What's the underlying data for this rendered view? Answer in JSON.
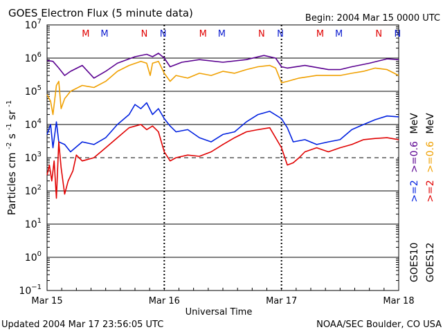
{
  "chart_data": {
    "type": "line",
    "title": "GOES Electron Flux (5 minute data)",
    "begin": "Begin:  2004 Mar 15  0000 UTC",
    "xlabel": "Universal Time",
    "ylabel": "Particles cm",
    "ylabel_units": [
      "-2",
      "s",
      "-1",
      "sr",
      "-1"
    ],
    "x_ticks": [
      "Mar 15",
      "Mar 16",
      "Mar 17",
      "Mar 18"
    ],
    "x_range_days": [
      0,
      3
    ],
    "y_scale": "log",
    "y_exponents": [
      7,
      6,
      5,
      4,
      3,
      2,
      1,
      0,
      -1
    ],
    "ylim": [
      0.1,
      10000000
    ],
    "dashed_level": 1000,
    "mn_markers": [
      {
        "label": "M",
        "day": 0.33,
        "color": "#e00000"
      },
      {
        "label": "M",
        "day": 0.49,
        "color": "#1020d0"
      },
      {
        "label": "N",
        "day": 0.83,
        "color": "#e00000"
      },
      {
        "label": "N",
        "day": 0.99,
        "color": "#1020d0"
      },
      {
        "label": "M",
        "day": 1.33,
        "color": "#e00000"
      },
      {
        "label": "M",
        "day": 1.49,
        "color": "#1020d0"
      },
      {
        "label": "N",
        "day": 1.83,
        "color": "#e00000"
      },
      {
        "label": "N",
        "day": 1.99,
        "color": "#1020d0"
      },
      {
        "label": "M",
        "day": 2.33,
        "color": "#e00000"
      },
      {
        "label": "M",
        "day": 2.49,
        "color": "#1020d0"
      },
      {
        "label": "N",
        "day": 2.83,
        "color": "#e00000"
      },
      {
        "label": "N",
        "day": 2.99,
        "color": "#1020d0"
      }
    ],
    "right_labels": {
      "goes10": "GOES10",
      "goes12": "GOES12",
      "g10_low": ">=2",
      "g10_high": ">=0.6",
      "g12_low": ">=2",
      "g12_high": ">=0.6",
      "unit": "MeV"
    },
    "series": [
      {
        "name": ">=0.6 MeV GOES10",
        "color": "#5a0090",
        "points": [
          [
            0.0,
            850000
          ],
          [
            0.05,
            800000
          ],
          [
            0.1,
            500000
          ],
          [
            0.15,
            300000
          ],
          [
            0.2,
            400000
          ],
          [
            0.3,
            600000
          ],
          [
            0.4,
            250000
          ],
          [
            0.5,
            400000
          ],
          [
            0.6,
            700000
          ],
          [
            0.75,
            1100000
          ],
          [
            0.85,
            1300000
          ],
          [
            0.9,
            1100000
          ],
          [
            0.95,
            1400000
          ],
          [
            1.0,
            1000000
          ],
          [
            1.05,
            550000
          ],
          [
            1.15,
            750000
          ],
          [
            1.3,
            900000
          ],
          [
            1.5,
            750000
          ],
          [
            1.7,
            900000
          ],
          [
            1.85,
            1200000
          ],
          [
            1.95,
            1000000
          ],
          [
            2.0,
            550000
          ],
          [
            2.05,
            500000
          ],
          [
            2.2,
            600000
          ],
          [
            2.4,
            450000
          ],
          [
            2.5,
            450000
          ],
          [
            2.6,
            550000
          ],
          [
            2.75,
            700000
          ],
          [
            2.9,
            950000
          ],
          [
            3.0,
            900000
          ]
        ]
      },
      {
        "name": ">=0.6 MeV GOES12",
        "color": "#f0a000",
        "points": [
          [
            0.0,
            80000
          ],
          [
            0.03,
            50000
          ],
          [
            0.05,
            20000
          ],
          [
            0.08,
            150000
          ],
          [
            0.1,
            200000
          ],
          [
            0.12,
            30000
          ],
          [
            0.15,
            60000
          ],
          [
            0.2,
            100000
          ],
          [
            0.3,
            150000
          ],
          [
            0.4,
            130000
          ],
          [
            0.5,
            200000
          ],
          [
            0.6,
            400000
          ],
          [
            0.7,
            600000
          ],
          [
            0.8,
            800000
          ],
          [
            0.85,
            700000
          ],
          [
            0.88,
            300000
          ],
          [
            0.9,
            700000
          ],
          [
            0.95,
            800000
          ],
          [
            1.0,
            350000
          ],
          [
            1.05,
            200000
          ],
          [
            1.1,
            300000
          ],
          [
            1.2,
            250000
          ],
          [
            1.3,
            350000
          ],
          [
            1.4,
            300000
          ],
          [
            1.5,
            400000
          ],
          [
            1.6,
            350000
          ],
          [
            1.7,
            450000
          ],
          [
            1.8,
            550000
          ],
          [
            1.9,
            600000
          ],
          [
            1.95,
            500000
          ],
          [
            2.0,
            180000
          ],
          [
            2.05,
            200000
          ],
          [
            2.15,
            250000
          ],
          [
            2.3,
            300000
          ],
          [
            2.5,
            300000
          ],
          [
            2.6,
            350000
          ],
          [
            2.7,
            400000
          ],
          [
            2.8,
            500000
          ],
          [
            2.9,
            450000
          ],
          [
            3.0,
            300000
          ]
        ]
      },
      {
        "name": ">=2 MeV GOES10",
        "color": "#0020e0",
        "points": [
          [
            0.0,
            5000
          ],
          [
            0.03,
            10000
          ],
          [
            0.05,
            2000
          ],
          [
            0.08,
            12000
          ],
          [
            0.1,
            3000
          ],
          [
            0.15,
            2500
          ],
          [
            0.2,
            1500
          ],
          [
            0.3,
            3000
          ],
          [
            0.4,
            2500
          ],
          [
            0.5,
            4000
          ],
          [
            0.6,
            10000
          ],
          [
            0.7,
            20000
          ],
          [
            0.75,
            40000
          ],
          [
            0.8,
            30000
          ],
          [
            0.85,
            45000
          ],
          [
            0.9,
            20000
          ],
          [
            0.95,
            30000
          ],
          [
            1.0,
            15000
          ],
          [
            1.05,
            9000
          ],
          [
            1.1,
            6000
          ],
          [
            1.2,
            7000
          ],
          [
            1.3,
            4000
          ],
          [
            1.4,
            3000
          ],
          [
            1.5,
            5000
          ],
          [
            1.6,
            6000
          ],
          [
            1.7,
            12000
          ],
          [
            1.8,
            20000
          ],
          [
            1.9,
            25000
          ],
          [
            2.0,
            15000
          ],
          [
            2.05,
            8000
          ],
          [
            2.1,
            3000
          ],
          [
            2.2,
            3500
          ],
          [
            2.3,
            2500
          ],
          [
            2.4,
            3000
          ],
          [
            2.5,
            3500
          ],
          [
            2.6,
            7000
          ],
          [
            2.7,
            10000
          ],
          [
            2.8,
            14000
          ],
          [
            2.9,
            18000
          ],
          [
            3.0,
            17000
          ]
        ]
      },
      {
        "name": ">=2 MeV GOES12",
        "color": "#e00000",
        "points": [
          [
            0.0,
            300
          ],
          [
            0.02,
            600
          ],
          [
            0.04,
            200
          ],
          [
            0.06,
            800
          ],
          [
            0.08,
            60
          ],
          [
            0.1,
            3000
          ],
          [
            0.12,
            500
          ],
          [
            0.15,
            80
          ],
          [
            0.18,
            200
          ],
          [
            0.22,
            400
          ],
          [
            0.25,
            1200
          ],
          [
            0.3,
            800
          ],
          [
            0.4,
            1000
          ],
          [
            0.5,
            2000
          ],
          [
            0.6,
            4000
          ],
          [
            0.7,
            8000
          ],
          [
            0.8,
            10000
          ],
          [
            0.85,
            7000
          ],
          [
            0.9,
            9000
          ],
          [
            0.95,
            6000
          ],
          [
            1.0,
            1500
          ],
          [
            1.05,
            800
          ],
          [
            1.1,
            1000
          ],
          [
            1.2,
            1200
          ],
          [
            1.3,
            1100
          ],
          [
            1.4,
            1500
          ],
          [
            1.5,
            2500
          ],
          [
            1.6,
            4000
          ],
          [
            1.7,
            6000
          ],
          [
            1.8,
            7000
          ],
          [
            1.9,
            8000
          ],
          [
            2.0,
            2000
          ],
          [
            2.05,
            600
          ],
          [
            2.1,
            700
          ],
          [
            2.15,
            1000
          ],
          [
            2.2,
            1500
          ],
          [
            2.3,
            2000
          ],
          [
            2.4,
            1500
          ],
          [
            2.5,
            2000
          ],
          [
            2.6,
            2500
          ],
          [
            2.7,
            3500
          ],
          [
            2.8,
            3800
          ],
          [
            2.9,
            4000
          ],
          [
            3.0,
            3500
          ]
        ]
      }
    ]
  },
  "footer": {
    "updated": "Updated 2004 Mar 17 23:56:05 UTC",
    "source": "NOAA/SEC Boulder, CO USA"
  }
}
